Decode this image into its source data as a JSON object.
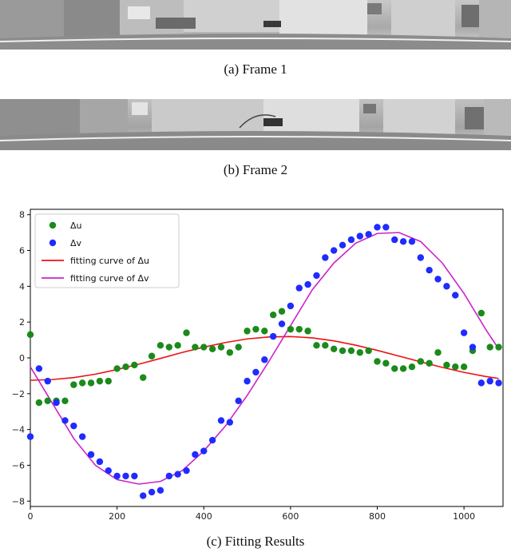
{
  "captions": {
    "frame1": "(a)  Frame 1",
    "frame2": "(b)  Frame 2",
    "fitting": "(c)  Fitting Results"
  },
  "colors": {
    "du_points": "#1a8a1a",
    "dv_points": "#1f2bff",
    "du_curve": "#ee1111",
    "dv_curve": "#cc22cc"
  },
  "chart_data": {
    "type": "scatter",
    "title": "",
    "xlabel": "",
    "ylabel": "",
    "xlim": [
      0,
      1090
    ],
    "ylim": [
      -8.3,
      8.3
    ],
    "xticks": [
      0,
      200,
      400,
      600,
      800,
      1000
    ],
    "yticks": [
      -8,
      -6,
      -4,
      -2,
      0,
      2,
      4,
      6,
      8
    ],
    "grid": false,
    "legend_position": "top-left",
    "series": [
      {
        "name": "Δu",
        "kind": "points",
        "x": [
          0,
          20,
          40,
          60,
          80,
          100,
          120,
          140,
          160,
          180,
          200,
          220,
          240,
          260,
          280,
          300,
          320,
          340,
          360,
          380,
          400,
          420,
          440,
          460,
          480,
          500,
          520,
          540,
          560,
          580,
          600,
          620,
          640,
          660,
          680,
          700,
          720,
          740,
          760,
          780,
          800,
          820,
          840,
          860,
          880,
          900,
          920,
          940,
          960,
          980,
          1000,
          1020,
          1040,
          1060,
          1080
        ],
        "y": [
          1.3,
          -2.5,
          -2.4,
          -2.4,
          -2.4,
          -1.5,
          -1.4,
          -1.4,
          -1.3,
          -1.3,
          -0.6,
          -0.5,
          -0.4,
          -1.1,
          0.1,
          0.7,
          0.6,
          0.7,
          1.4,
          0.6,
          0.6,
          0.5,
          0.6,
          0.3,
          0.6,
          1.5,
          1.6,
          1.5,
          2.4,
          2.6,
          1.6,
          1.6,
          1.5,
          0.7,
          0.7,
          0.5,
          0.4,
          0.4,
          0.3,
          0.4,
          -0.2,
          -0.3,
          -0.6,
          -0.6,
          -0.5,
          -0.2,
          -0.3,
          0.3,
          -0.4,
          -0.5,
          -0.5,
          0.4,
          2.5,
          0.6,
          0.6
        ]
      },
      {
        "name": "Δv",
        "kind": "points",
        "x": [
          0,
          20,
          40,
          60,
          80,
          100,
          120,
          140,
          160,
          180,
          200,
          220,
          240,
          260,
          280,
          300,
          320,
          340,
          360,
          380,
          400,
          420,
          440,
          460,
          480,
          500,
          520,
          540,
          560,
          580,
          600,
          620,
          640,
          660,
          680,
          700,
          720,
          740,
          760,
          780,
          800,
          820,
          840,
          860,
          880,
          900,
          920,
          940,
          960,
          980,
          1000,
          1020,
          1040,
          1060,
          1080
        ],
        "y": [
          -4.4,
          -0.6,
          -1.3,
          -2.5,
          -3.5,
          -3.8,
          -4.4,
          -5.4,
          -5.8,
          -6.3,
          -6.6,
          -6.6,
          -6.6,
          -7.7,
          -7.5,
          -7.4,
          -6.6,
          -6.5,
          -6.3,
          -5.4,
          -5.2,
          -4.6,
          -3.5,
          -3.6,
          -2.4,
          -1.3,
          -0.8,
          -0.1,
          1.2,
          1.9,
          2.9,
          3.9,
          4.1,
          4.6,
          5.6,
          6.0,
          6.3,
          6.6,
          6.8,
          6.9,
          7.3,
          7.3,
          6.6,
          6.5,
          6.5,
          5.6,
          4.9,
          4.4,
          4.0,
          3.5,
          1.4,
          0.6,
          -1.4,
          -1.3,
          -1.4
        ]
      },
      {
        "name": "fitting curve of Δu",
        "kind": "line",
        "x": [
          0,
          50,
          100,
          150,
          200,
          250,
          300,
          350,
          400,
          450,
          500,
          550,
          600,
          650,
          700,
          750,
          800,
          850,
          900,
          950,
          1000,
          1050,
          1080
        ],
        "y": [
          -1.25,
          -1.21,
          -1.1,
          -0.91,
          -0.65,
          -0.35,
          -0.03,
          0.3,
          0.6,
          0.86,
          1.06,
          1.17,
          1.19,
          1.12,
          0.95,
          0.71,
          0.42,
          0.1,
          -0.22,
          -0.53,
          -0.81,
          -1.04,
          -1.15
        ]
      },
      {
        "name": "fitting curve of Δv",
        "kind": "line",
        "x": [
          0,
          50,
          100,
          150,
          200,
          250,
          300,
          350,
          400,
          450,
          500,
          550,
          600,
          650,
          700,
          750,
          800,
          850,
          900,
          950,
          1000,
          1050,
          1080
        ],
        "y": [
          -0.5,
          -2.5,
          -4.5,
          -6.0,
          -6.8,
          -7.05,
          -6.9,
          -6.3,
          -5.2,
          -3.8,
          -2.1,
          -0.2,
          1.8,
          3.8,
          5.3,
          6.4,
          6.95,
          7.0,
          6.5,
          5.3,
          3.6,
          1.6,
          0.5
        ]
      }
    ]
  }
}
